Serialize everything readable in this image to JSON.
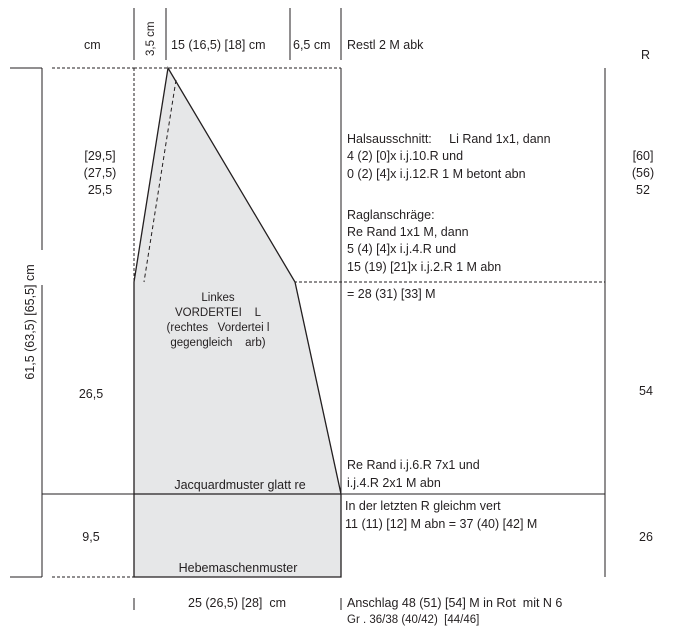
{
  "header": {
    "cm": "cm",
    "w_neck": "3,5 cm",
    "w_mid": "15 (16,5) [18] cm",
    "w_right": "6,5 cm",
    "rest": "Restl 2 M abk",
    "rows": "R"
  },
  "side": {
    "total_height": "61,5 (63,5) [65,5] cm"
  },
  "heights": {
    "top": [
      "[29,5]",
      "(27,5)",
      "25,5"
    ],
    "mid": "26,5",
    "bot": "9,5"
  },
  "rows": {
    "top": [
      "[60]",
      "(56)",
      "52"
    ],
    "mid": "54",
    "bot": "26"
  },
  "instructions": {
    "neck": [
      "Halsausschnitt:     Li Rand 1x1, dann",
      "4 (2) [0]x i.j.10.R und",
      "0 (2) [4]x i.j.12.R 1 M betont abn"
    ],
    "raglan": [
      "Raglanschräge:",
      "Re Rand 1x1 M, dann",
      "5 (4) [4]x i.j.4.R und",
      "15 (19) [21]x i.j.2.R 1 M abn"
    ],
    "stitches_mid": "= 28 (31) [33] M",
    "side": [
      "Re Rand i.j.6.R 7x1 und",
      "i.j.4.R 2x1 M abn"
    ],
    "last_row": [
      "In der letzten R gleichm vert",
      "11 (11) [12] M abn = 37 (40) [42] M"
    ]
  },
  "piece": {
    "title": [
      "Linkes",
      "VORDERTEI    L",
      "(rechtes   Vordertei l",
      "gegengleich    arb)"
    ],
    "jacquard": "Jacquardmuster glatt re",
    "hebe": "Hebemaschenmuster"
  },
  "footer": {
    "width": "25 (26,5) [28]  cm",
    "cast_on": "Anschlag 48 (51) [54] M in Rot  mit N 6",
    "sizes": "Gr . 36/38 (40/42)  [44/46]"
  },
  "colors": {
    "fill": "#e6e7e8",
    "line": "#231f20"
  }
}
